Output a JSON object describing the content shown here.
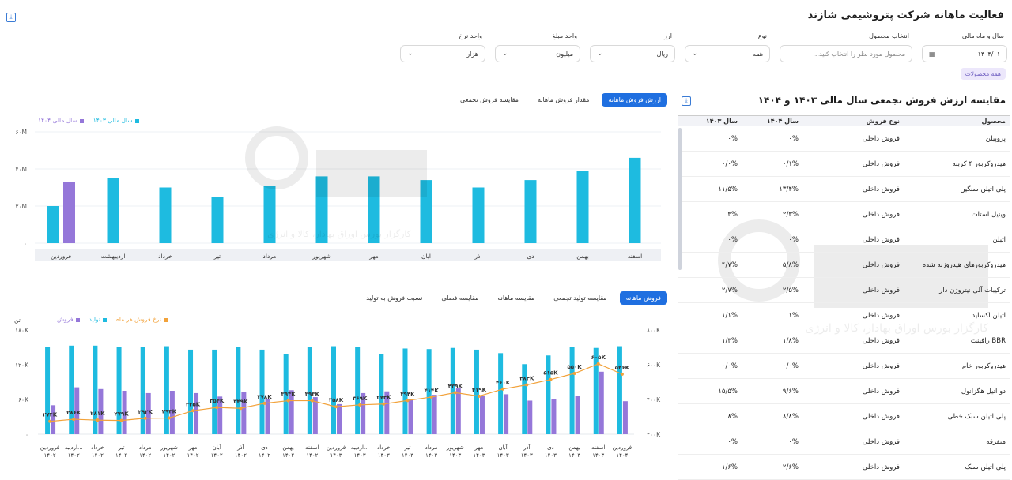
{
  "page": {
    "title": "فعالیت ماهانه شرکت پتروشیمی شازند"
  },
  "filters": {
    "fiscal_period": {
      "label": "سال و ماه مالی",
      "value": "۱۴۰۴/۰۱"
    },
    "product": {
      "label": "انتخاب محصول",
      "placeholder": "محصول مورد نظر را انتخاب کنید..."
    },
    "type": {
      "label": "نوع",
      "value": "همه"
    },
    "currency": {
      "label": "ارز",
      "value": "ریال"
    },
    "amount_unit": {
      "label": "واحد مبلغ",
      "value": "میلیون"
    },
    "rate_unit": {
      "label": "واحد نرخ",
      "value": "هزار"
    },
    "chip": "همه محصولات"
  },
  "top_chart": {
    "tabs": [
      "ارزش فروش ماهانه",
      "مقدار فروش ماهانه",
      "مقایسه فروش تجمعی"
    ],
    "active_tab": 0,
    "legend": [
      {
        "label": "سال مالی ۱۴۰۳",
        "color": "#1ebbe0"
      },
      {
        "label": "سال مالی ۱۴۰۴",
        "color": "#9577d9"
      }
    ]
  },
  "bottom_chart": {
    "tabs": [
      "فروش ماهانه",
      "مقایسه تولید تجمعی",
      "مقایسه ماهانه",
      "مقایسه فصلی",
      "نسبت فروش به تولید"
    ],
    "active_tab": 0,
    "legend": [
      {
        "label": "نرخ فروش هر ماه",
        "color": "#f2a23a"
      },
      {
        "label": "تولید",
        "color": "#1ebbe0"
      },
      {
        "label": "فروش",
        "color": "#9577d9"
      }
    ],
    "left_unit": "تن"
  },
  "table_section": {
    "title": "مقایسه ارزش فروش تجمعی سال مالی ۱۴۰۳ و ۱۴۰۴",
    "headers": [
      "محصول",
      "نوع فروش",
      "سال ۱۴۰۴",
      "سال ۱۴۰۳"
    ],
    "rows": [
      [
        "پروپیلن",
        "فروش داخلی",
        "۰%",
        "۰%"
      ],
      [
        "هیدروکربور ۴ کربنه",
        "فروش داخلی",
        "۰/۱%",
        "۰/۰%"
      ],
      [
        "پلی اتیلن سنگین",
        "فروش داخلی",
        "۱۳/۴%",
        "۱۱/۵%"
      ],
      [
        "وینیل استات",
        "فروش داخلی",
        "۲/۳%",
        "۳%"
      ],
      [
        "اتیلن",
        "فروش داخلی",
        "۰%",
        "۰%"
      ],
      [
        "هیدروکربورهای هیدروژنه شده",
        "فروش داخلی",
        "۵/۸%",
        "۴/۷%"
      ],
      [
        "ترکیبات آلی نیتروژن دار",
        "فروش داخلی",
        "۲/۵%",
        "۲/۷%"
      ],
      [
        "اتیلن اکساید",
        "فروش داخلی",
        "۱%",
        "۱/۱%"
      ],
      [
        "رافینت BBR",
        "فروش داخلی",
        "۱/۸%",
        "۱/۳%"
      ],
      [
        "هیدروکربور خام",
        "فروش داخلی",
        "۰/۰%",
        "۰/۰%"
      ],
      [
        "دو اتیل هگزانول",
        "فروش داخلی",
        "۹/۶%",
        "۱۵/۵%"
      ],
      [
        "پلی اتیلن سبک خطی",
        "فروش داخلی",
        "۸/۸%",
        "۸%"
      ],
      [
        "متفرقه",
        "فروش داخلی",
        "۰%",
        "۰%"
      ],
      [
        "پلی اتیلن سبک",
        "فروش داخلی",
        "۲/۶%",
        "۱/۶%"
      ]
    ]
  },
  "watermark": {
    "brand": "آگاه",
    "tagline": "کارگزار بورس اوراق بهادار، کالا و انرژی"
  },
  "chart_data": [
    {
      "type": "bar",
      "title": "",
      "xlabel": "",
      "ylabel": "",
      "ylim": [
        0,
        60
      ],
      "yticks": [
        "۰",
        "۲۰M",
        "۴۰M",
        "۶۰M"
      ],
      "categories": [
        "فروردین",
        "اردیبهشت",
        "خرداد",
        "تیر",
        "مرداد",
        "شهریور",
        "مهر",
        "آبان",
        "آذر",
        "دی",
        "بهمن",
        "اسفند"
      ],
      "series": [
        {
          "name": "سال مالی ۱۴۰۳",
          "values": [
            20,
            35,
            30,
            25,
            31,
            36,
            36,
            34,
            30,
            34,
            39,
            46
          ]
        },
        {
          "name": "سال مالی ۱۴۰۴",
          "values": [
            33,
            null,
            null,
            null,
            null,
            null,
            null,
            null,
            null,
            null,
            null,
            null
          ]
        }
      ]
    },
    {
      "type": "bar",
      "title": "",
      "xlabel": "",
      "ylabel": "تن",
      "ylim": [
        0,
        180
      ],
      "yticks": [
        "۰",
        "۶۰K",
        "۱۲۰K",
        "۱۸۰K"
      ],
      "y2lim": [
        200,
        800
      ],
      "y2ticks": [
        "۲۰۰K",
        "۴۰۰K",
        "۶۰۰K",
        "۸۰۰K"
      ],
      "categories": [
        [
          "فروردین",
          "۱۴۰۲"
        ],
        [
          "اردیبه...",
          "۱۴۰۲"
        ],
        [
          "خرداد",
          "۱۴۰۲"
        ],
        [
          "تیر",
          "۱۴۰۲"
        ],
        [
          "مرداد",
          "۱۴۰۲"
        ],
        [
          "شهریور",
          "۱۴۰۲"
        ],
        [
          "مهر",
          "۱۴۰۲"
        ],
        [
          "آبان",
          "۱۴۰۲"
        ],
        [
          "آذر",
          "۱۴۰۲"
        ],
        [
          "دی",
          "۱۴۰۲"
        ],
        [
          "بهمن",
          "۱۴۰۲"
        ],
        [
          "اسفند",
          "۱۴۰۲"
        ],
        [
          "فروردین",
          "۱۴۰۳"
        ],
        [
          "اردیبه...",
          "۱۴۰۳"
        ],
        [
          "خرداد",
          "۱۴۰۳"
        ],
        [
          "تیر",
          "۱۴۰۳"
        ],
        [
          "مرداد",
          "۱۴۰۳"
        ],
        [
          "شهریور",
          "۱۴۰۳"
        ],
        [
          "مهر",
          "۱۴۰۳"
        ],
        [
          "آبان",
          "۱۴۰۳"
        ],
        [
          "آذر",
          "۱۴۰۳"
        ],
        [
          "دی",
          "۱۴۰۳"
        ],
        [
          "بهمن",
          "۱۴۰۳"
        ],
        [
          "اسفند",
          "۱۴۰۳"
        ],
        [
          "فروردین",
          "۱۴۰۴"
        ]
      ],
      "series": [
        {
          "name": "تولید",
          "values": [
            150,
            153,
            153,
            150,
            150,
            152,
            146,
            146,
            150,
            146,
            138,
            150,
            152,
            150,
            139,
            148,
            147,
            149,
            146,
            140,
            121,
            136,
            151,
            149,
            152
          ]
        },
        {
          "name": "فروش",
          "values": [
            50,
            81,
            78,
            75,
            71,
            75,
            71,
            65,
            73,
            60,
            76,
            64,
            52,
            71,
            74,
            60,
            68,
            79,
            66,
            69,
            58,
            61,
            66,
            108,
            57
          ]
        },
        {
          "name": "نرخ فروش هر ماه",
          "axis": "right",
          "values": [
            274,
            286,
            281,
            279,
            292,
            293,
            335,
            354,
            349,
            378,
            393,
            393,
            358,
            369,
            374,
            394,
            414,
            439,
            419,
            460,
            484,
            515,
            550,
            605,
            546
          ]
        }
      ],
      "rate_labels": [
        "۲۷۴K",
        "۲۸۶K",
        "۲۸۱K",
        "۲۷۹K",
        "۲۹۲K",
        "۲۹۳K",
        "۳۳۵K",
        "۳۵۴K",
        "۳۴۹K",
        "۳۷۸K",
        "۳۹۳K",
        "۳۹۳K",
        "۳۵۸K",
        "۳۶۹K",
        "۳۷۴K",
        "۳۹۴K",
        "۴۱۴K",
        "۴۳۹K",
        "۴۱۹K",
        "۴۶۰K",
        "۴۸۴K",
        "۵۱۵K",
        "۵۵۰K",
        "۶۰۵K",
        "۵۴۶K"
      ]
    }
  ]
}
